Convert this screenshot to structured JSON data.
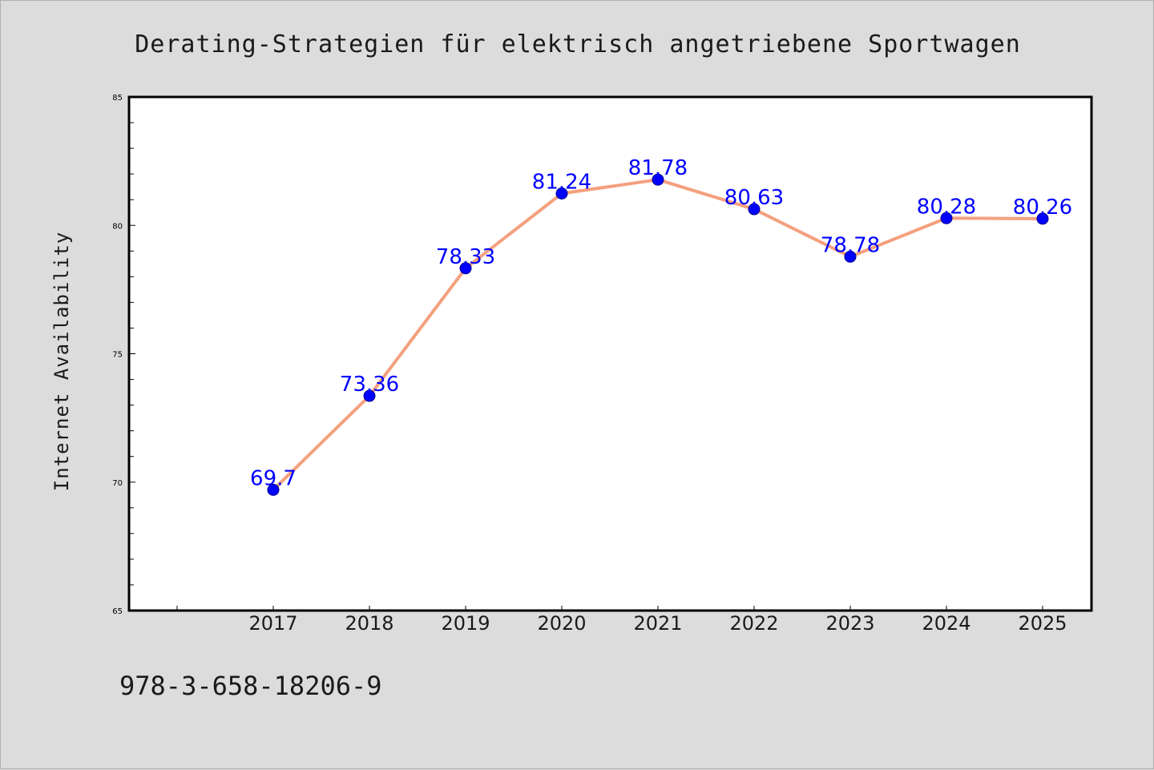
{
  "chart_data": {
    "type": "line",
    "title": "Derating-Strategien für elektrisch angetriebene Sportwagen",
    "ylabel": "Internet Availability",
    "xlabel": "",
    "x": [
      "2017",
      "2018",
      "2019",
      "2020",
      "2021",
      "2022",
      "2023",
      "2024",
      "2025"
    ],
    "series": [
      {
        "values": [
          69.7,
          73.36,
          78.33,
          81.24,
          81.78,
          80.63,
          78.78,
          80.28,
          80.26
        ],
        "data_labels": [
          "69.7",
          "73.36",
          "78.33",
          "81.24",
          "81.78",
          "80.63",
          "78.78",
          "80.28",
          "80.26"
        ]
      }
    ],
    "ylim": [
      65,
      85
    ],
    "yticks": [
      "65",
      "70",
      "75",
      "80",
      "85"
    ],
    "grid": false,
    "legend": "none",
    "colors": {
      "line": "#f4a07e",
      "marker": "#0000ff",
      "label": "#0000ff",
      "background": "#dcdcdc",
      "plot": "#ffffff"
    }
  },
  "footer": {
    "isbn": "978-3-658-18206-9"
  }
}
